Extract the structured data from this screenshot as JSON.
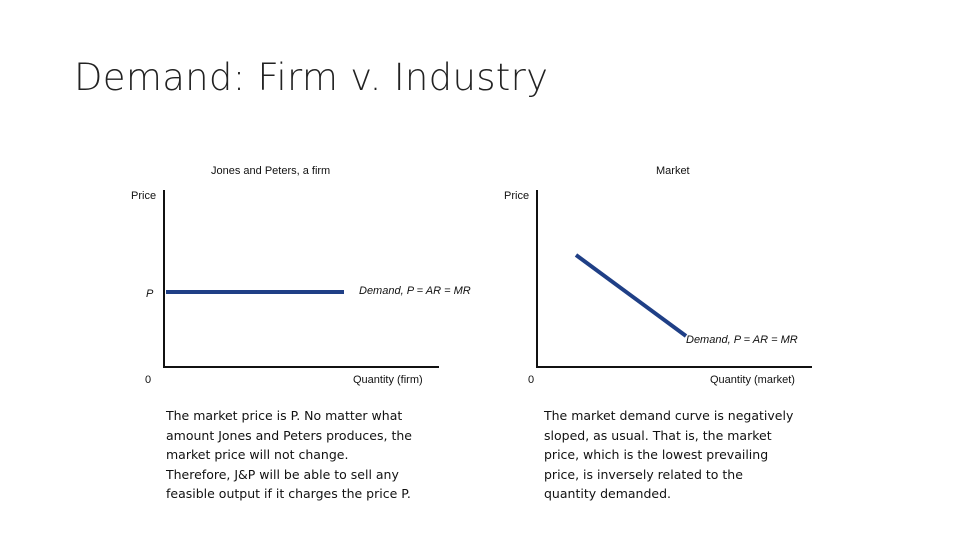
{
  "title": "Demand: Firm v. Industry",
  "left_panel": {
    "heading": "Jones and Peters, a firm",
    "y_axis_label": "Price",
    "x_axis_label": "Quantity (firm)",
    "origin_label": "0",
    "price_tick_label": "P",
    "curve_label": "Demand, P = AR = MR",
    "curve_shape": "horizontal",
    "curve_color": "#1f3f86",
    "caption_lines": [
      "The market price is P. No matter what",
      "amount Jones and Peters produces, the",
      "market price will not change.",
      "Therefore, J&P will be able to sell any",
      "feasible output if it charges the price P."
    ]
  },
  "right_panel": {
    "heading": "Market",
    "y_axis_label": "Price",
    "x_axis_label": "Quantity (market)",
    "origin_label": "0",
    "curve_label": "Demand, P = AR = MR",
    "curve_shape": "downward-sloping",
    "curve_color": "#1f3f86",
    "caption_lines": [
      "The market demand curve is negatively",
      "sloped, as usual. That is, the market",
      "price, which is the lowest prevailing",
      "price, is inversely related to the",
      "quantity demanded."
    ]
  }
}
